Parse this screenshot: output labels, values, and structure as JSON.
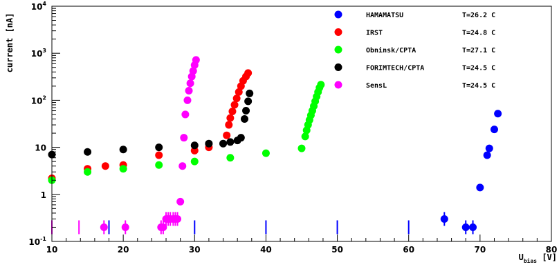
{
  "chart_data": {
    "type": "scatter",
    "title": "",
    "xlabel": {
      "main": "U",
      "sub": "bias",
      "unit": " [V]"
    },
    "ylabel": "current [nA]",
    "xlim": [
      10,
      80
    ],
    "ylim": [
      0.1,
      10000
    ],
    "yscale": "log",
    "grid": false,
    "legend_position": "top-right",
    "x_ticks": [
      "10",
      "20",
      "30",
      "40",
      "50",
      "60",
      "70",
      "80"
    ],
    "y_ticks": [
      {
        "value": 0.1,
        "base": "10",
        "exp": "-1"
      },
      {
        "value": 1,
        "base": "1",
        "exp": ""
      },
      {
        "value": 10,
        "base": "10",
        "exp": ""
      },
      {
        "value": 100,
        "base": "10",
        "exp": "2"
      },
      {
        "value": 1000,
        "base": "10",
        "exp": "3"
      },
      {
        "value": 10000,
        "base": "10",
        "exp": "4"
      }
    ],
    "series": [
      {
        "name": "HAMAMATSU",
        "temperature": "T=26.2 C",
        "color": "#0000ff",
        "points": [
          [
            65,
            0.3
          ],
          [
            68,
            0.2
          ],
          [
            69,
            0.2
          ],
          [
            70,
            1.4
          ],
          [
            71,
            6.8
          ],
          [
            71.3,
            9.5
          ],
          [
            72,
            24
          ],
          [
            72.5,
            52
          ]
        ],
        "error_bars": [
          [
            10,
            0.2
          ],
          [
            18,
            0.2
          ],
          [
            30,
            0.2
          ],
          [
            40,
            0.2
          ],
          [
            50,
            0.2
          ],
          [
            60,
            0.2
          ],
          [
            65,
            0.3
          ],
          [
            68,
            0.2
          ],
          [
            69,
            0.2
          ]
        ]
      },
      {
        "name": "IRST",
        "temperature": "T=24.8 C",
        "color": "#ff0000",
        "points": [
          [
            10,
            2.2
          ],
          [
            15,
            3.5
          ],
          [
            17.5,
            4
          ],
          [
            20,
            4.2
          ],
          [
            25,
            6.8
          ],
          [
            30,
            8.5
          ],
          [
            32,
            10
          ],
          [
            34.5,
            18
          ],
          [
            34.8,
            30
          ],
          [
            35,
            42
          ],
          [
            35.3,
            58
          ],
          [
            35.6,
            80
          ],
          [
            35.9,
            110
          ],
          [
            36.2,
            150
          ],
          [
            36.5,
            200
          ],
          [
            36.8,
            260
          ],
          [
            37.2,
            320
          ],
          [
            37.5,
            380
          ]
        ],
        "error_bars": []
      },
      {
        "name": "Obninsk/CPTA",
        "temperature": "T=27.1 C",
        "color": "#00ff00",
        "points": [
          [
            10,
            2
          ],
          [
            15,
            3
          ],
          [
            20,
            3.5
          ],
          [
            25,
            4.2
          ],
          [
            30,
            5
          ],
          [
            35,
            6
          ],
          [
            40,
            7.5
          ],
          [
            45,
            9.5
          ],
          [
            45.5,
            17
          ],
          [
            45.7,
            23
          ],
          [
            45.9,
            30
          ],
          [
            46.1,
            38
          ],
          [
            46.3,
            48
          ],
          [
            46.5,
            60
          ],
          [
            46.7,
            75
          ],
          [
            46.9,
            95
          ],
          [
            47.1,
            120
          ],
          [
            47.3,
            150
          ],
          [
            47.5,
            185
          ],
          [
            47.7,
            215
          ]
        ],
        "error_bars": []
      },
      {
        "name": "FORIMTECH/CPTA",
        "temperature": "T=24.5 C",
        "color": "#000000",
        "points": [
          [
            10,
            7
          ],
          [
            15,
            8
          ],
          [
            20,
            9
          ],
          [
            25,
            10
          ],
          [
            30,
            11
          ],
          [
            32,
            12
          ],
          [
            34,
            12
          ],
          [
            35,
            13
          ],
          [
            36,
            14
          ],
          [
            36.5,
            16
          ],
          [
            37,
            40
          ],
          [
            37.2,
            60
          ],
          [
            37.5,
            95
          ],
          [
            37.7,
            140
          ]
        ],
        "error_bars": []
      },
      {
        "name": "SensL",
        "temperature": "T=24.5 C",
        "color": "#ff00ff",
        "points": [
          [
            17.3,
            0.2
          ],
          [
            20.3,
            0.2
          ],
          [
            25.3,
            0.2
          ],
          [
            25.6,
            0.2
          ],
          [
            26,
            0.3
          ],
          [
            26.3,
            0.3
          ],
          [
            26.6,
            0.3
          ],
          [
            27,
            0.3
          ],
          [
            27.3,
            0.3
          ],
          [
            27.6,
            0.3
          ],
          [
            28,
            0.7
          ],
          [
            28.3,
            4
          ],
          [
            28.5,
            16
          ],
          [
            28.7,
            50
          ],
          [
            29,
            100
          ],
          [
            29.2,
            160
          ],
          [
            29.4,
            230
          ],
          [
            29.6,
            320
          ],
          [
            29.8,
            420
          ],
          [
            30,
            560
          ],
          [
            30.2,
            720
          ]
        ],
        "error_bars": [
          [
            10,
            0.2
          ],
          [
            13.8,
            0.2
          ],
          [
            17.3,
            0.2
          ],
          [
            20.3,
            0.2
          ],
          [
            25.3,
            0.2
          ],
          [
            25.6,
            0.2
          ],
          [
            26,
            0.3
          ],
          [
            26.3,
            0.3
          ],
          [
            26.6,
            0.3
          ],
          [
            27,
            0.3
          ],
          [
            27.3,
            0.3
          ],
          [
            27.6,
            0.3
          ]
        ]
      }
    ]
  }
}
